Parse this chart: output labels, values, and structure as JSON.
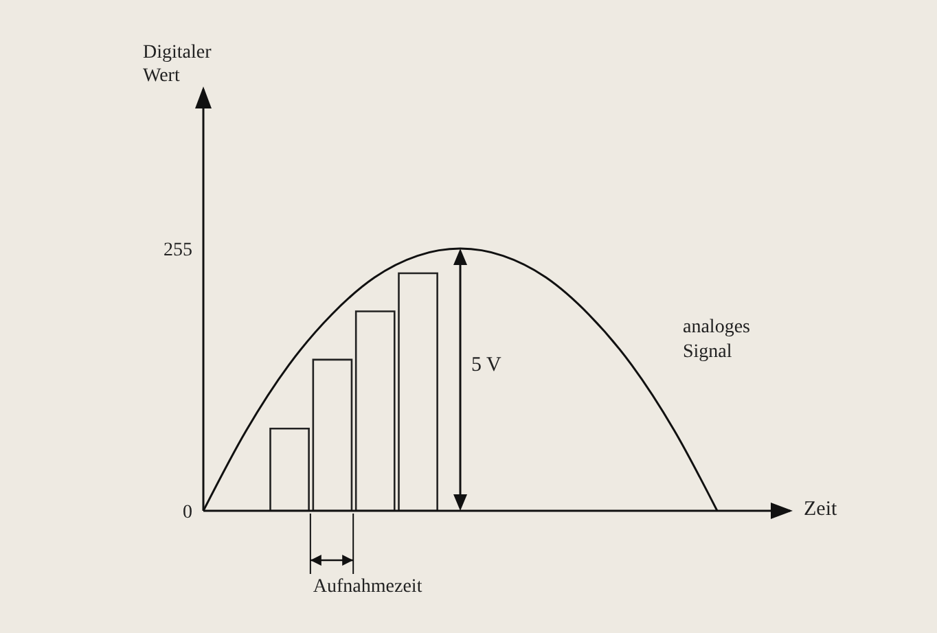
{
  "chart_data": {
    "type": "bar",
    "xlabel": "Zeit",
    "ylabel": "Digitaler Wert",
    "categories": [
      null,
      null,
      null,
      null,
      null,
      null,
      null,
      null,
      null,
      null,
      null,
      null,
      null
    ],
    "series": [
      {
        "color": "#222222",
        "values": [
          null,
          null,
          80,
          147,
          194,
          231,
          null,
          null,
          null,
          null,
          null,
          null,
          null
        ]
      },
      {
        "type": "line",
        "name": "analoges Signal",
        "color": "#111111",
        "values": [
          0,
          78,
          142,
          191,
          227,
          248,
          255,
          248,
          227,
          191,
          142,
          78,
          0
        ]
      }
    ],
    "ylim": [
      0,
      410
    ],
    "yticks": [
      0,
      255
    ],
    "grid": false,
    "marker": "none",
    "tick_labels": "y",
    "annotations": [
      "5 V",
      "Aufnahmezeit"
    ]
  }
}
